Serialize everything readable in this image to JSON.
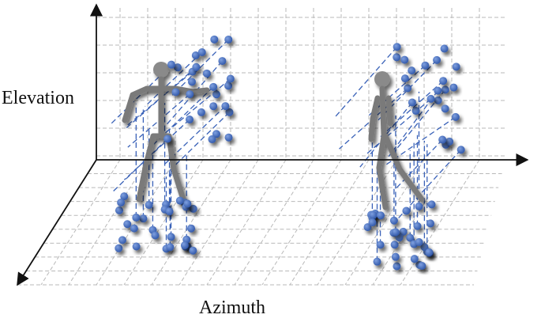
{
  "labels": {
    "elevation": "Elevation",
    "azimuth": "Azimuth"
  }
}
